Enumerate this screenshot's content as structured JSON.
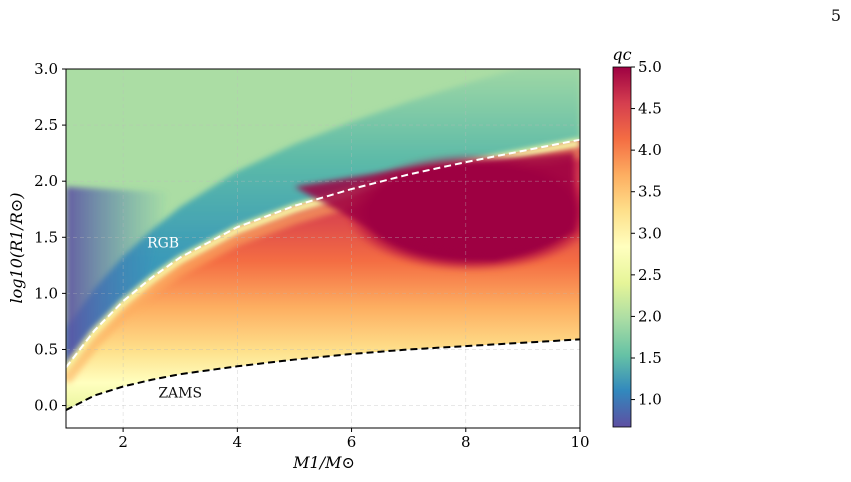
{
  "page_number": "5",
  "chart_data": {
    "type": "heatmap",
    "xlabel": "M1/M⊙",
    "ylabel": "log10(R1/R⊙)",
    "xlim": [
      1,
      10
    ],
    "ylim": [
      -0.2,
      3.0
    ],
    "x_ticks": [
      2,
      4,
      6,
      8,
      10
    ],
    "y_ticks": [
      0.0,
      0.5,
      1.0,
      1.5,
      2.0,
      2.5,
      3.0
    ],
    "grid": true,
    "colorbar": {
      "label": "qc",
      "range": [
        0.67,
        5.0
      ],
      "ticks": [
        1.0,
        1.5,
        2.0,
        2.5,
        3.0,
        3.5,
        4.0,
        4.5,
        5.0
      ],
      "colormap": "Spectral_r",
      "colors": [
        "#5e4fa2",
        "#3288bd",
        "#66c2a5",
        "#abdda4",
        "#e6f598",
        "#ffffbf",
        "#fee08b",
        "#fdae61",
        "#f46d43",
        "#d53e4f",
        "#9e0142"
      ]
    },
    "curves": [
      {
        "name": "RGB",
        "style": "dashed",
        "color": "#ffffff",
        "x": [
          1.0,
          1.5,
          2.0,
          2.5,
          3.0,
          4.0,
          5.0,
          6.0,
          7.0,
          8.0,
          9.0,
          10.0
        ],
        "y": [
          0.34,
          0.67,
          0.93,
          1.14,
          1.32,
          1.59,
          1.78,
          1.93,
          2.06,
          2.17,
          2.27,
          2.37
        ]
      },
      {
        "name": "ZAMS",
        "style": "dashed",
        "color": "#000000",
        "x": [
          1.0,
          1.5,
          2.0,
          2.5,
          3.0,
          4.0,
          5.0,
          6.0,
          7.0,
          8.0,
          9.0,
          10.0
        ],
        "y": [
          -0.04,
          0.09,
          0.17,
          0.23,
          0.28,
          0.35,
          0.41,
          0.46,
          0.5,
          0.53,
          0.56,
          0.59
        ]
      }
    ],
    "annotations": [
      {
        "text": "RGB",
        "x": 2.7,
        "y": 1.41
      },
      {
        "text": "ZAMS",
        "x": 3.0,
        "y": 0.07
      }
    ]
  }
}
